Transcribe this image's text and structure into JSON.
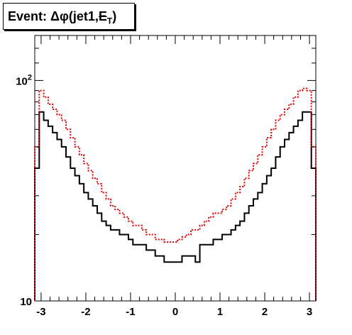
{
  "chart_data": {
    "type": "histogram",
    "title": {
      "prefix": "Event: ",
      "symbol": "Δφ",
      "args_open": "(jet1,",
      "met_letter": "E",
      "met_sub": "T",
      "args_close": ")"
    },
    "xlabel": "",
    "ylabel": "",
    "xlim": [
      -3.1416,
      3.1416
    ],
    "ylim": [
      10,
      160
    ],
    "y_scale": "log",
    "grid": false,
    "x_ticks": [
      -3,
      -2,
      -1,
      0,
      1,
      2,
      3
    ],
    "x_tick_labels": [
      "-3",
      "-2",
      "-1",
      "0",
      "1",
      "2",
      "3"
    ],
    "y_ticks": [
      10,
      100
    ],
    "y_tick_labels": [
      "10",
      "10^2"
    ],
    "series": [
      {
        "style": "solid",
        "color": "#000000",
        "values": [
          40,
          72,
          66,
          62,
          58,
          54,
          50,
          45,
          40,
          37,
          34,
          31,
          29,
          27,
          25,
          23,
          22,
          21,
          21,
          20,
          20,
          19,
          18,
          18,
          18,
          17,
          17,
          16,
          16,
          15,
          15,
          15,
          15,
          16,
          16,
          16,
          15,
          18,
          18,
          18,
          19,
          19,
          20,
          20,
          21,
          22,
          23,
          25,
          27,
          29,
          31,
          34,
          37,
          40,
          45,
          50,
          54,
          58,
          62,
          66,
          72,
          72,
          40
        ]
      },
      {
        "style": "dotted",
        "color": "#dd0000",
        "values": [
          50,
          90,
          84,
          78,
          74,
          70,
          66,
          60,
          55,
          50,
          46,
          42,
          39,
          36,
          34,
          31,
          29,
          27,
          26,
          25,
          24,
          23,
          22,
          22,
          21,
          20,
          20,
          19,
          19,
          18.5,
          18.5,
          18.5,
          19,
          19.5,
          20,
          21,
          21,
          22,
          23,
          24,
          25,
          25,
          26,
          27,
          29,
          31,
          33,
          36,
          39,
          42,
          46,
          50,
          55,
          60,
          66,
          70,
          74,
          78,
          84,
          90,
          92,
          90,
          50
        ]
      }
    ]
  },
  "colors": {
    "frame": "#000000",
    "background": "#ffffff"
  }
}
